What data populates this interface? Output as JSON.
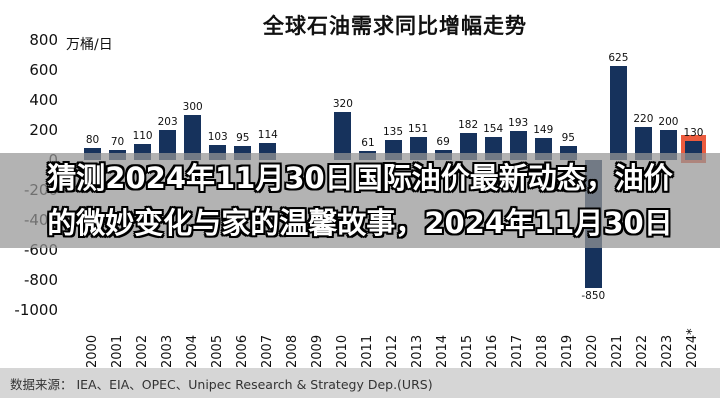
{
  "chart_data": {
    "type": "bar",
    "title": "全球石油需求同比增幅走势",
    "unit_label": "万桶/日",
    "categories": [
      "2000",
      "2001",
      "2002",
      "2003",
      "2004",
      "2005",
      "2006",
      "2007",
      "2008",
      "2009",
      "2010",
      "2011",
      "2012",
      "2013",
      "2014",
      "2015",
      "2016",
      "2017",
      "2018",
      "2019",
      "2020",
      "2021",
      "2022",
      "2023",
      "2024*"
    ],
    "values": [
      80,
      70,
      110,
      203,
      300,
      103,
      95,
      114,
      null,
      null,
      320,
      61,
      135,
      151,
      69,
      182,
      154,
      193,
      149,
      95,
      -850,
      625,
      220,
      200,
      130
    ],
    "labels": [
      "80",
      "70",
      "110",
      "203",
      "300",
      "103",
      "95",
      "114",
      "",
      "",
      "320",
      "61",
      "135",
      "151",
      "69",
      "182",
      "154",
      "193",
      "149",
      "95",
      "-850",
      "625",
      "220",
      "200",
      "130"
    ],
    "ylim": [
      -1000,
      800
    ],
    "ytick_step": 200,
    "xlabel": "",
    "ylabel": "万桶/日",
    "grid": "off",
    "legend": "none",
    "bar_color": "#16325c",
    "highlight_index": 24,
    "highlight_color": "#e93e1c"
  },
  "overlay": {
    "line1": "猜测2024年11月30日国际油价最新动态，油价",
    "line2": "的微妙变化与家的温馨故事，2024年11月30日"
  },
  "footer": {
    "source": "数据来源： IEA、EIA、OPEC、Unipec Research & Strategy Dep.(URS)"
  }
}
